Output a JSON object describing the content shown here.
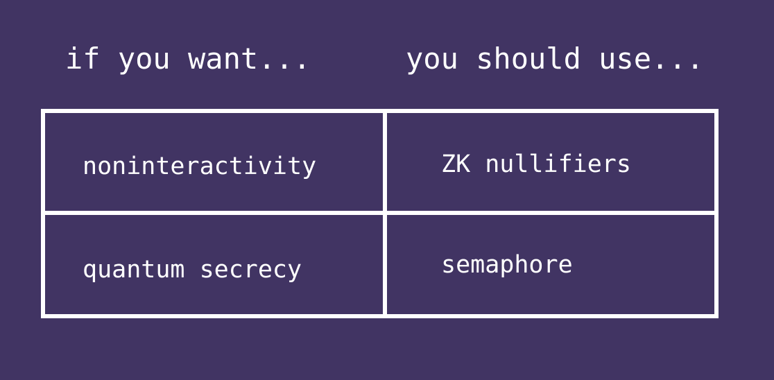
{
  "headers": {
    "left": "if you want...",
    "right": "you should use..."
  },
  "rows": [
    {
      "want": "noninteractivity",
      "use": "ZK nullifiers"
    },
    {
      "want": "quantum secrecy",
      "use": "semaphore"
    }
  ],
  "colors": {
    "background": "#413463",
    "foreground": "#ffffff"
  }
}
